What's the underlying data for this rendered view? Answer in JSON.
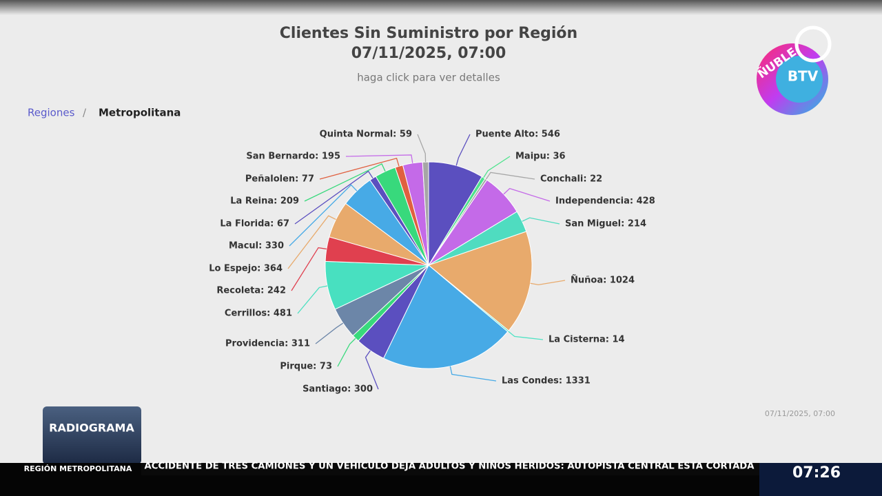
{
  "chart_data": {
    "type": "pie",
    "title": "Clientes Sin Suministro por Región",
    "subtitle": "07/11/2025, 07:00",
    "hint": "haga click para ver detalles",
    "values": [
      546,
      36,
      22,
      428,
      214,
      1024,
      14,
      1331,
      300,
      73,
      311,
      481,
      242,
      364,
      330,
      67,
      209,
      77,
      195,
      59
    ],
    "value_labels": [
      "Puente Alto: 546",
      "Maipu: 36",
      "Conchali: 22",
      "Independencia: 428",
      "San Miguel: 214",
      "Ñuñoa: 1024",
      "La Cisterna: 14",
      "Las Condes: 1331",
      "Santiago: 300",
      "Pirque: 73",
      "Providencia: 311",
      "Cerrillos: 481",
      "Recoleta: 242",
      "Lo Espejo: 364",
      "Macul: 330",
      "La Florida: 67",
      "La Reina: 209",
      "Peñalolen: 77",
      "San Bernardo: 195",
      "Quinta Normal: 59"
    ],
    "colors": [
      "#5b4fbf",
      "#4de38c",
      "#a6a6a6",
      "#c46ae8",
      "#4fdcc0",
      "#e8aa6c",
      "#4fe3c4",
      "#47aae6",
      "#5b4fbf",
      "#38d97c",
      "#6c86a8",
      "#48e0c0",
      "#e0404f",
      "#e8aa6c",
      "#47aae6",
      "#5b4fbf",
      "#38d97c",
      "#e06040",
      "#c46ae8",
      "#a6a6a6"
    ],
    "footnote": "07/11/2025, 07:00"
  },
  "breadcrumb": {
    "root": "Regiones",
    "separator": "/",
    "current": "Metropolitana"
  },
  "overlay": {
    "logo_top": "ÑUBLE",
    "logo_channel": "BTV",
    "program": "RADIOGRAMA",
    "region": "REGIÓN METROPOLITANA",
    "headline": "ACCIDENTE DE TRES CAMIONES Y UN VEHICULO DEJA ADULTOS Y NIÑOS HERIDOS: AUTOPISTA CENTRAL ESTA CORTADA",
    "clock": "07:26"
  }
}
